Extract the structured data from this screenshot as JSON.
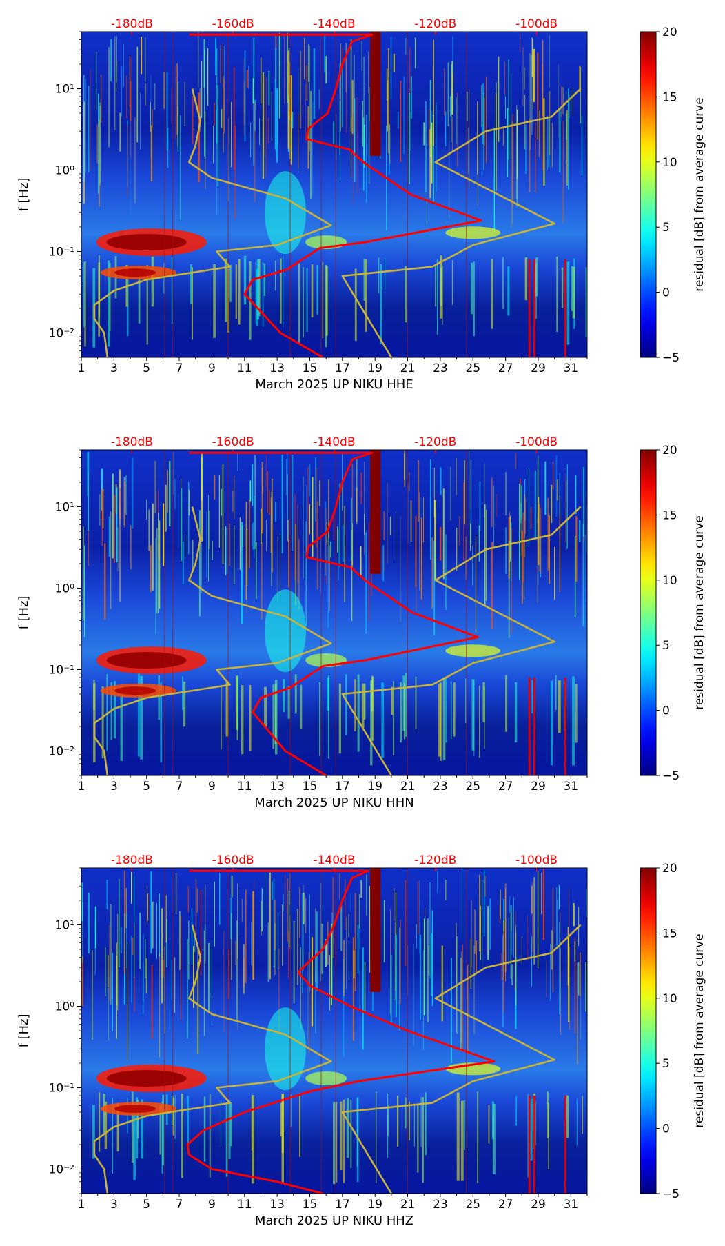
{
  "chart_data": [
    {
      "type": "heatmap",
      "title": "",
      "xlabel": "March 2025 UP NIKU  HHE",
      "ylabel": "f [Hz]",
      "x_ticks": [
        "1",
        "3",
        "5",
        "7",
        "9",
        "11",
        "13",
        "15",
        "17",
        "19",
        "21",
        "23",
        "25",
        "27",
        "29",
        "31"
      ],
      "xlim": [
        1,
        32
      ],
      "y_scale": "log",
      "ylim": [
        0.005,
        50
      ],
      "y_ticks": [
        {
          "value": 0.01,
          "label": "10⁻²"
        },
        {
          "value": 0.1,
          "label": "10⁻¹"
        },
        {
          "value": 1,
          "label": "10⁰"
        },
        {
          "value": 10,
          "label": "10¹"
        }
      ],
      "top_axis_labels": [
        "-180dB",
        "-160dB",
        "-140dB",
        "-120dB",
        "-100dB"
      ],
      "top_axis_color": "#ff0000",
      "colorbar": {
        "label": "residual [dB] from average curve",
        "range": [
          -5,
          20
        ],
        "ticks": [
          "20",
          "15",
          "10",
          "5",
          "0",
          "−5"
        ],
        "colormap": "jet"
      },
      "series": [
        {
          "color": "#ff0000",
          "values": [
            [
              15.8,
              0.005
            ],
            [
              13.2,
              0.01
            ],
            [
              11.0,
              0.03
            ],
            [
              11.5,
              0.045
            ],
            [
              13.6,
              0.06
            ],
            [
              15.6,
              0.11
            ],
            [
              18.4,
              0.13
            ],
            [
              25.5,
              0.24
            ],
            [
              21.2,
              0.5
            ],
            [
              18.4,
              1.2
            ],
            [
              17.4,
              1.8
            ],
            [
              14.8,
              2.4
            ],
            [
              14.9,
              3.2
            ],
            [
              16.1,
              5.0
            ],
            [
              16.6,
              10.0
            ],
            [
              17.0,
              20.0
            ],
            [
              17.6,
              38.0
            ],
            [
              18.8,
              46.0
            ],
            [
              7.6,
              46.0
            ]
          ]
        },
        {
          "color": "#c8b43c",
          "values": [
            [
              2.6,
              0.005
            ],
            [
              2.4,
              0.01
            ],
            [
              1.8,
              0.015
            ],
            [
              1.8,
              0.022
            ],
            [
              3.0,
              0.033
            ],
            [
              5.0,
              0.045
            ],
            [
              10.1,
              0.065
            ],
            [
              9.3,
              0.1
            ],
            [
              13.0,
              0.12
            ],
            [
              16.3,
              0.21
            ],
            [
              13.5,
              0.45
            ],
            [
              9.0,
              0.8
            ],
            [
              7.6,
              1.25
            ],
            [
              8.0,
              2.0
            ],
            [
              8.3,
              4.0
            ],
            [
              7.8,
              10.0
            ]
          ]
        },
        {
          "color": "#c8b43c",
          "values": [
            [
              20.0,
              0.005
            ],
            [
              17.0,
              0.05
            ],
            [
              22.5,
              0.065
            ],
            [
              25.0,
              0.12
            ],
            [
              30.0,
              0.22
            ],
            [
              22.7,
              1.25
            ],
            [
              25.8,
              3.0
            ],
            [
              29.8,
              4.5
            ],
            [
              31.6,
              10.0
            ]
          ]
        }
      ]
    },
    {
      "type": "heatmap",
      "title": "",
      "xlabel": "March 2025 UP NIKU  HHN",
      "ylabel": "f [Hz]",
      "x_ticks": [
        "1",
        "3",
        "5",
        "7",
        "9",
        "11",
        "13",
        "15",
        "17",
        "19",
        "21",
        "23",
        "25",
        "27",
        "29",
        "31"
      ],
      "xlim": [
        1,
        32
      ],
      "y_scale": "log",
      "ylim": [
        0.005,
        50
      ],
      "y_ticks": [
        {
          "value": 0.01,
          "label": "10⁻²"
        },
        {
          "value": 0.1,
          "label": "10⁻¹"
        },
        {
          "value": 1,
          "label": "10⁰"
        },
        {
          "value": 10,
          "label": "10¹"
        }
      ],
      "top_axis_labels": [
        "-180dB",
        "-160dB",
        "-140dB",
        "-120dB",
        "-100dB"
      ],
      "top_axis_color": "#ff0000",
      "colorbar": {
        "label": "residual [dB] from average curve",
        "range": [
          -5,
          20
        ],
        "ticks": [
          "20",
          "15",
          "10",
          "5",
          "0",
          "−5"
        ],
        "colormap": "jet"
      },
      "series": [
        {
          "color": "#ff0000",
          "values": [
            [
              16.0,
              0.005
            ],
            [
              13.5,
              0.01
            ],
            [
              11.5,
              0.03
            ],
            [
              12.0,
              0.045
            ],
            [
              13.8,
              0.06
            ],
            [
              15.8,
              0.11
            ],
            [
              18.4,
              0.13
            ],
            [
              25.3,
              0.25
            ],
            [
              21.3,
              0.5
            ],
            [
              18.5,
              1.2
            ],
            [
              17.5,
              1.8
            ],
            [
              14.8,
              2.4
            ],
            [
              14.9,
              3.2
            ],
            [
              16.1,
              5.0
            ],
            [
              16.6,
              10.0
            ],
            [
              17.0,
              20.0
            ],
            [
              17.6,
              38.0
            ],
            [
              18.8,
              46.0
            ],
            [
              7.6,
              46.0
            ]
          ]
        },
        {
          "color": "#c8b43c",
          "values": [
            [
              2.6,
              0.005
            ],
            [
              2.4,
              0.01
            ],
            [
              1.8,
              0.015
            ],
            [
              1.8,
              0.022
            ],
            [
              3.0,
              0.033
            ],
            [
              5.0,
              0.045
            ],
            [
              10.1,
              0.065
            ],
            [
              9.3,
              0.1
            ],
            [
              13.0,
              0.12
            ],
            [
              16.3,
              0.21
            ],
            [
              13.5,
              0.45
            ],
            [
              9.0,
              0.8
            ],
            [
              7.6,
              1.25
            ],
            [
              8.0,
              2.0
            ],
            [
              8.3,
              4.0
            ],
            [
              7.8,
              10.0
            ]
          ]
        },
        {
          "color": "#c8b43c",
          "values": [
            [
              20.0,
              0.005
            ],
            [
              17.0,
              0.05
            ],
            [
              22.5,
              0.065
            ],
            [
              25.0,
              0.12
            ],
            [
              30.0,
              0.22
            ],
            [
              22.7,
              1.25
            ],
            [
              25.8,
              3.0
            ],
            [
              29.8,
              4.5
            ],
            [
              31.6,
              10.0
            ]
          ]
        }
      ]
    },
    {
      "type": "heatmap",
      "title": "",
      "xlabel": "March 2025 UP NIKU  HHZ",
      "ylabel": "f [Hz]",
      "x_ticks": [
        "1",
        "3",
        "5",
        "7",
        "9",
        "11",
        "13",
        "15",
        "17",
        "19",
        "21",
        "23",
        "25",
        "27",
        "29",
        "31"
      ],
      "xlim": [
        1,
        32
      ],
      "y_scale": "log",
      "ylim": [
        0.005,
        50
      ],
      "y_ticks": [
        {
          "value": 0.01,
          "label": "10⁻²"
        },
        {
          "value": 0.1,
          "label": "10⁻¹"
        },
        {
          "value": 1,
          "label": "10⁰"
        },
        {
          "value": 10,
          "label": "10¹"
        }
      ],
      "top_axis_labels": [
        "-180dB",
        "-160dB",
        "-140dB",
        "-120dB",
        "-100dB"
      ],
      "top_axis_color": "#ff0000",
      "colorbar": {
        "label": "residual [dB] from average curve",
        "range": [
          -5,
          20
        ],
        "ticks": [
          "20",
          "15",
          "10",
          "5",
          "0",
          "−5"
        ],
        "colormap": "jet"
      },
      "series": [
        {
          "color": "#ff0000",
          "values": [
            [
              15.8,
              0.005
            ],
            [
              13.0,
              0.007
            ],
            [
              9.0,
              0.01
            ],
            [
              7.6,
              0.015
            ],
            [
              7.5,
              0.02
            ],
            [
              8.5,
              0.03
            ],
            [
              11.0,
              0.05
            ],
            [
              15.0,
              0.09
            ],
            [
              18.0,
              0.12
            ],
            [
              26.3,
              0.21
            ],
            [
              21.0,
              0.5
            ],
            [
              17.5,
              1.0
            ],
            [
              15.0,
              1.8
            ],
            [
              14.3,
              2.6
            ],
            [
              14.8,
              3.3
            ],
            [
              15.8,
              5.0
            ],
            [
              16.5,
              10.0
            ],
            [
              17.0,
              20.0
            ],
            [
              17.6,
              38.0
            ],
            [
              18.6,
              46.0
            ],
            [
              7.6,
              46.0
            ]
          ]
        },
        {
          "color": "#c8b43c",
          "values": [
            [
              2.6,
              0.005
            ],
            [
              2.4,
              0.01
            ],
            [
              1.8,
              0.015
            ],
            [
              1.8,
              0.022
            ],
            [
              3.0,
              0.033
            ],
            [
              5.0,
              0.045
            ],
            [
              10.1,
              0.065
            ],
            [
              9.3,
              0.1
            ],
            [
              13.0,
              0.12
            ],
            [
              16.3,
              0.21
            ],
            [
              13.5,
              0.45
            ],
            [
              9.0,
              0.8
            ],
            [
              7.6,
              1.25
            ],
            [
              8.0,
              2.0
            ],
            [
              8.3,
              4.0
            ],
            [
              7.8,
              10.0
            ]
          ]
        },
        {
          "color": "#c8b43c",
          "values": [
            [
              20.0,
              0.005
            ],
            [
              17.0,
              0.05
            ],
            [
              22.5,
              0.065
            ],
            [
              25.0,
              0.12
            ],
            [
              30.0,
              0.22
            ],
            [
              22.7,
              1.25
            ],
            [
              25.8,
              3.0
            ],
            [
              29.8,
              4.5
            ],
            [
              31.6,
              10.0
            ]
          ]
        }
      ]
    }
  ]
}
